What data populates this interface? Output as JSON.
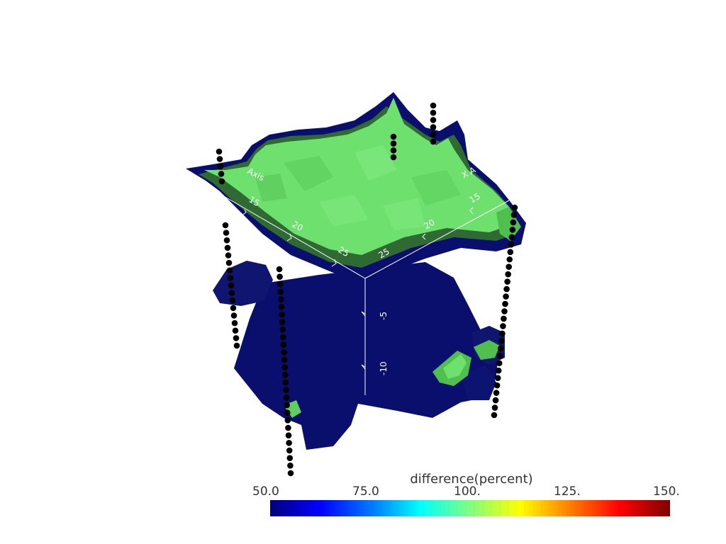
{
  "axes": {
    "y_axis_label": "Axis",
    "x_axis_label": "X A",
    "left_ticks": [
      "15",
      "20",
      "25"
    ],
    "right_ticks": [
      "25",
      "20",
      "15"
    ],
    "z_ticks": [
      "-5",
      "-10"
    ]
  },
  "colorbar": {
    "title": "difference(percent)",
    "ticks": [
      "50.0",
      "75.0",
      "100.",
      "125.",
      "150."
    ],
    "range": [
      50,
      150
    ],
    "colormap": [
      "#00007f",
      "#0000ff",
      "#007fff",
      "#00ffff",
      "#7fff7f",
      "#ffff00",
      "#ff7f00",
      "#ff0000",
      "#7f0000"
    ]
  },
  "colors": {
    "isosurface_blue": "#0a0f6e",
    "isosurface_green": "#6ee06e",
    "borehole_points": "#000000",
    "background": "#ffffff"
  }
}
